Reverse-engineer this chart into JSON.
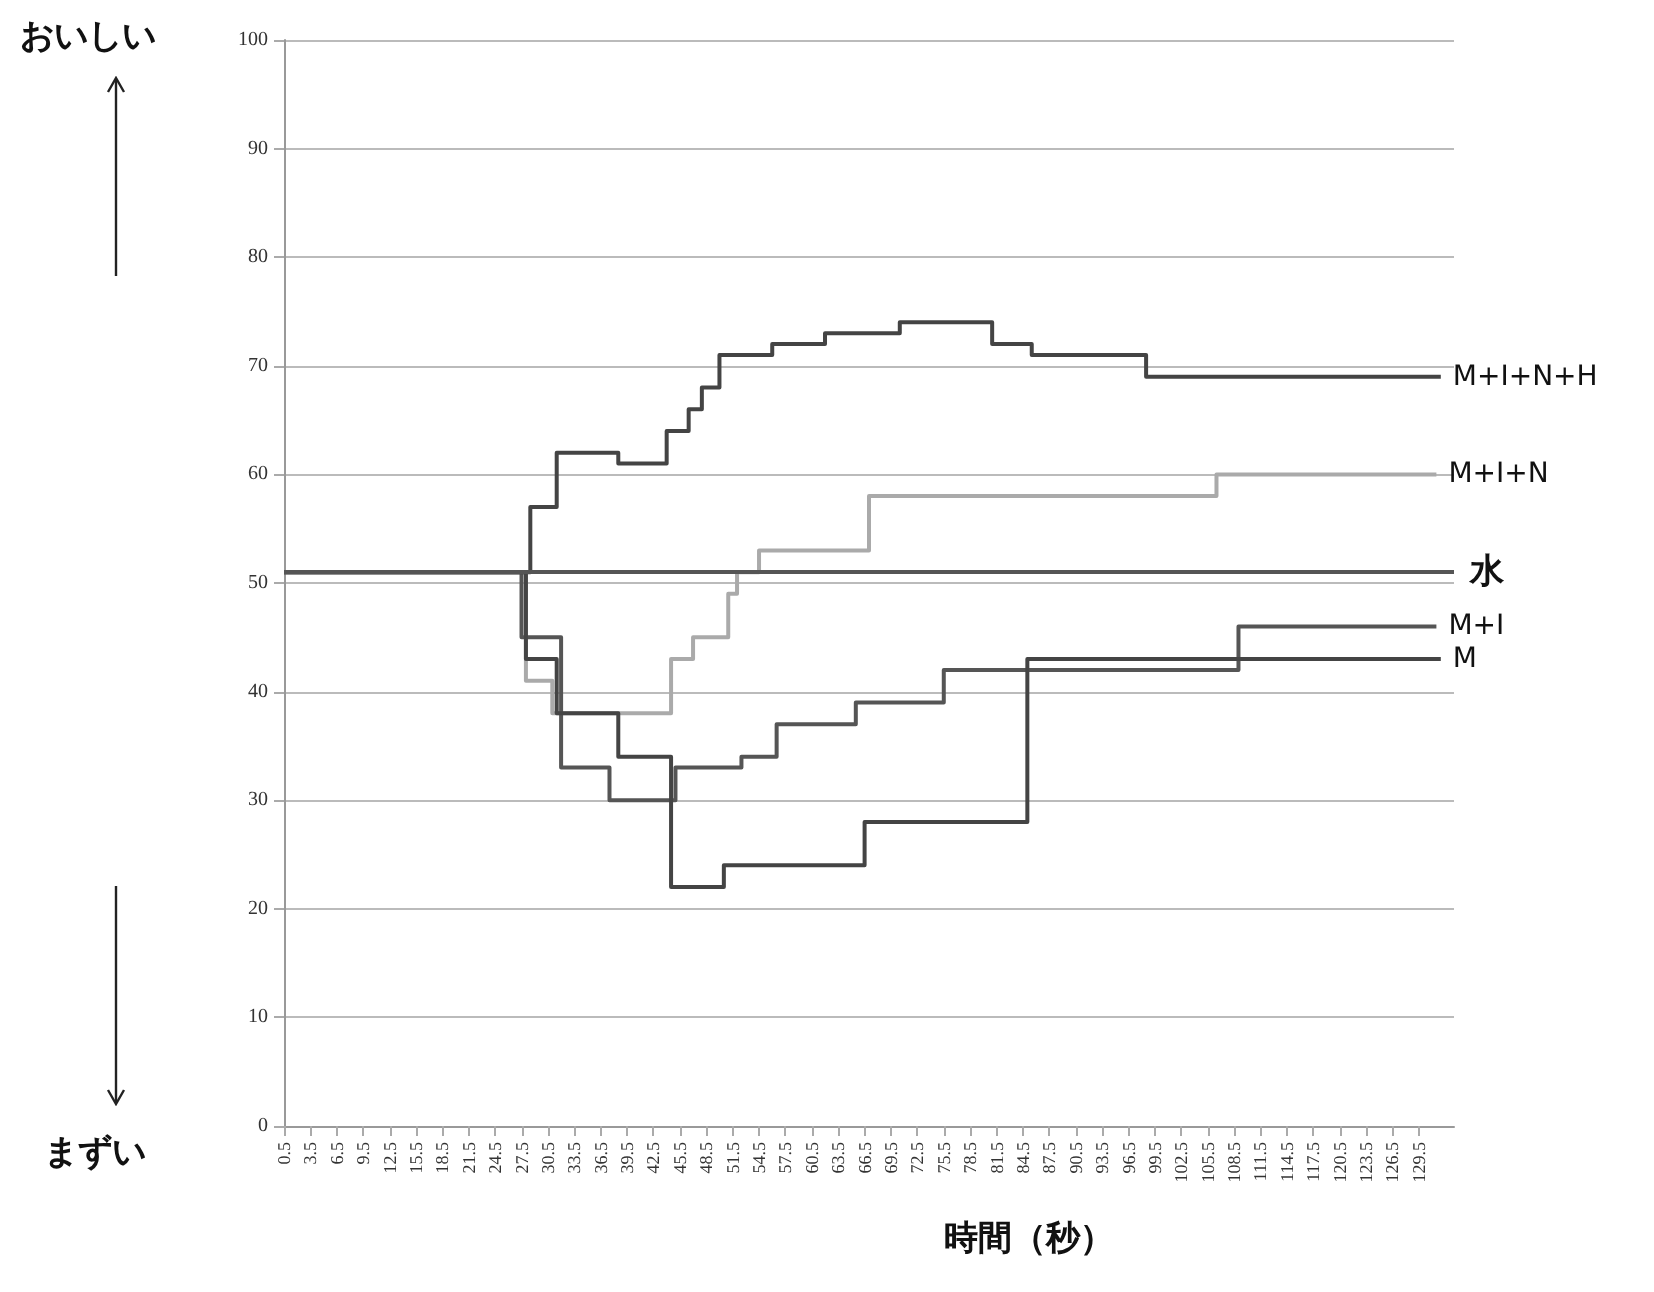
{
  "chart_data": {
    "type": "step",
    "xlabel": "時間（秒）",
    "annotations": [
      "おいしい",
      "まずい"
    ],
    "xlim": [
      0.5,
      133.5
    ],
    "xticks": [
      0.5,
      3.5,
      6.5,
      9.5,
      12.5,
      15.5,
      18.5,
      21.5,
      24.5,
      27.5,
      30.5,
      33.5,
      36.5,
      39.5,
      42.5,
      45.5,
      48.5,
      51.5,
      54.5,
      57.5,
      60.5,
      63.5,
      66.5,
      69.5,
      72.5,
      75.5,
      78.5,
      81.5,
      84.5,
      87.5,
      90.5,
      93.5,
      96.5,
      99.5,
      102.5,
      105.5,
      108.5,
      111.5,
      114.5,
      117.5,
      120.5,
      123.5,
      126.5,
      129.5
    ],
    "ylim": [
      0,
      100
    ],
    "yticks": [
      0,
      10,
      20,
      30,
      40,
      50,
      60,
      70,
      80,
      90,
      100
    ],
    "grid": "y",
    "ref_lines": [
      {
        "axis": "y",
        "value": 51,
        "label": "水",
        "color": "#555555"
      }
    ],
    "series": [
      {
        "name": "M+I+N+H",
        "color": "#444444",
        "x": [
          0.5,
          28.5,
          31.5,
          38.5,
          44,
          46.5,
          48,
          50,
          56,
          62,
          70.5,
          81,
          85.5,
          98.5,
          132
        ],
        "values": [
          51,
          57,
          62,
          61,
          64,
          66,
          68,
          71,
          72,
          73,
          74,
          72,
          71,
          69,
          69
        ]
      },
      {
        "name": "M+I+N",
        "color": "#aaaaaa",
        "x": [
          0.5,
          28,
          31,
          44.5,
          47,
          51,
          52,
          54.5,
          67,
          106.5,
          131.5
        ],
        "values": [
          51,
          41,
          38,
          43,
          45,
          49,
          51,
          53,
          58,
          60,
          60
        ]
      },
      {
        "name": "M+I",
        "color": "#555555",
        "x": [
          0.5,
          27.5,
          32,
          37.5,
          45,
          52.5,
          56.5,
          65.5,
          75.5,
          109,
          131.5
        ],
        "values": [
          51,
          45,
          33,
          30,
          33,
          34,
          37,
          39,
          42,
          46,
          46
        ]
      },
      {
        "name": "M",
        "color": "#444444",
        "x": [
          0.5,
          28,
          31.5,
          38.5,
          44.5,
          50.5,
          66.5,
          85,
          132
        ],
        "values": [
          51,
          43,
          38,
          34,
          22,
          24,
          28,
          43,
          43
        ]
      }
    ]
  }
}
